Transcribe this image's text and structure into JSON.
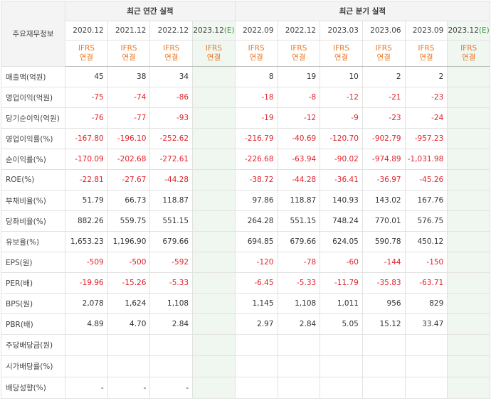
{
  "corner_label": "주요재무정보",
  "group_annual": "최근 연간 실적",
  "group_quarter": "최근 분기 실적",
  "est_mark": "(E)",
  "periods": [
    {
      "label": "2020.12",
      "est": false
    },
    {
      "label": "2021.12",
      "est": false
    },
    {
      "label": "2022.12",
      "est": false
    },
    {
      "label": "2023.12",
      "est": true
    },
    {
      "label": "2022.09",
      "est": false
    },
    {
      "label": "2022.12",
      "est": false
    },
    {
      "label": "2023.03",
      "est": false
    },
    {
      "label": "2023.06",
      "est": false
    },
    {
      "label": "2023.09",
      "est": false
    },
    {
      "label": "2023.12",
      "est": true
    }
  ],
  "ifrs_line1": "IFRS",
  "ifrs_line2": "연결",
  "rows": [
    {
      "label": "매출액(억원)",
      "values": [
        "45",
        "38",
        "34",
        "",
        "8",
        "19",
        "10",
        "2",
        "2",
        ""
      ]
    },
    {
      "label": "영업이익(억원)",
      "values": [
        "-75",
        "-74",
        "-86",
        "",
        "-18",
        "-8",
        "-12",
        "-21",
        "-23",
        ""
      ]
    },
    {
      "label": "당기순이익(억원)",
      "values": [
        "-76",
        "-77",
        "-93",
        "",
        "-19",
        "-12",
        "-9",
        "-23",
        "-24",
        ""
      ]
    },
    {
      "label": "영업이익률(%)",
      "values": [
        "-167.80",
        "-196.10",
        "-252.62",
        "",
        "-216.79",
        "-40.69",
        "-120.70",
        "-902.79",
        "-957.23",
        ""
      ]
    },
    {
      "label": "순이익률(%)",
      "values": [
        "-170.09",
        "-202.68",
        "-272.61",
        "",
        "-226.68",
        "-63.94",
        "-90.02",
        "-974.89",
        "-1,031.98",
        ""
      ]
    },
    {
      "label": "ROE(%)",
      "values": [
        "-22.81",
        "-27.67",
        "-44.28",
        "",
        "-38.72",
        "-44.28",
        "-36.41",
        "-36.97",
        "-45.26",
        ""
      ]
    },
    {
      "label": "부채비율(%)",
      "values": [
        "51.79",
        "66.73",
        "118.87",
        "",
        "97.86",
        "118.87",
        "140.93",
        "143.02",
        "167.76",
        ""
      ]
    },
    {
      "label": "당좌비율(%)",
      "values": [
        "882.26",
        "559.75",
        "551.15",
        "",
        "264.28",
        "551.15",
        "748.24",
        "770.01",
        "576.75",
        ""
      ]
    },
    {
      "label": "유보율(%)",
      "values": [
        "1,653.23",
        "1,196.90",
        "679.66",
        "",
        "694.85",
        "679.66",
        "624.05",
        "590.78",
        "450.12",
        ""
      ]
    },
    {
      "label": "EPS(원)",
      "values": [
        "-509",
        "-500",
        "-592",
        "",
        "-120",
        "-78",
        "-60",
        "-144",
        "-150",
        ""
      ]
    },
    {
      "label": "PER(배)",
      "values": [
        "-19.96",
        "-15.26",
        "-5.33",
        "",
        "-6.45",
        "-5.33",
        "-11.79",
        "-35.83",
        "-63.71",
        ""
      ]
    },
    {
      "label": "BPS(원)",
      "values": [
        "2,078",
        "1,624",
        "1,108",
        "",
        "1,145",
        "1,108",
        "1,011",
        "956",
        "829",
        ""
      ]
    },
    {
      "label": "PBR(배)",
      "values": [
        "4.89",
        "4.70",
        "2.84",
        "",
        "2.97",
        "2.84",
        "5.05",
        "15.12",
        "33.47",
        ""
      ]
    },
    {
      "label": "주당배당금(원)",
      "values": [
        "",
        "",
        "",
        "",
        "",
        "",
        "",
        "",
        "",
        ""
      ]
    },
    {
      "label": "시가배당률(%)",
      "values": [
        "",
        "",
        "",
        "",
        "",
        "",
        "",
        "",
        "",
        ""
      ]
    },
    {
      "label": "배당성향(%)",
      "values": [
        "-",
        "-",
        "-",
        "",
        "",
        "",
        "",
        "",
        "",
        ""
      ]
    }
  ],
  "colors": {
    "negative": "#e0232a",
    "ifrs": "#e87a2a",
    "estimate_bg": "#f0f6f0",
    "estimate_mark": "#3a9a3a",
    "header_bg": "#f4f4f4"
  }
}
